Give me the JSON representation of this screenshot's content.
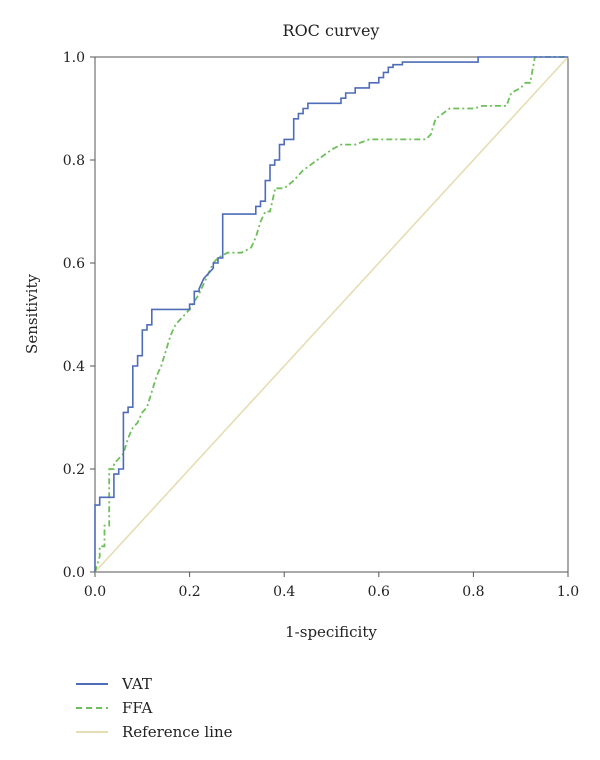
{
  "chart_data": {
    "type": "line",
    "title": "ROC curvey",
    "xlabel": "1-specificity",
    "ylabel": "Sensitivity",
    "xlim": [
      0,
      1
    ],
    "ylim": [
      0,
      1
    ],
    "x_ticks": [
      "0.0",
      "0.2",
      "0.4",
      "0.6",
      "0.8",
      "1.0"
    ],
    "y_ticks": [
      "0.0",
      "0.2",
      "0.4",
      "0.6",
      "0.8",
      "1.0"
    ],
    "grid": false,
    "legend_position": "bottom-left",
    "series": [
      {
        "name": "VAT",
        "color": "#4e6cb8",
        "style": "solid",
        "x": [
          0.0,
          0.0,
          0.01,
          0.01,
          0.04,
          0.04,
          0.05,
          0.05,
          0.06,
          0.06,
          0.07,
          0.07,
          0.08,
          0.08,
          0.09,
          0.09,
          0.1,
          0.1,
          0.11,
          0.11,
          0.12,
          0.12,
          0.14,
          0.14,
          0.2,
          0.2,
          0.21,
          0.21,
          0.22,
          0.22,
          0.23,
          0.25,
          0.25,
          0.26,
          0.26,
          0.27,
          0.27,
          0.34,
          0.34,
          0.35,
          0.35,
          0.36,
          0.36,
          0.37,
          0.37,
          0.38,
          0.38,
          0.39,
          0.39,
          0.4,
          0.4,
          0.42,
          0.42,
          0.43,
          0.43,
          0.44,
          0.44,
          0.45,
          0.45,
          0.47,
          0.47,
          0.52,
          0.52,
          0.53,
          0.53,
          0.55,
          0.55,
          0.58,
          0.58,
          0.6,
          0.6,
          0.61,
          0.61,
          0.62,
          0.62,
          0.63,
          0.63,
          0.65,
          0.65,
          0.81,
          0.81,
          1.0
        ],
        "y": [
          0.0,
          0.13,
          0.13,
          0.145,
          0.145,
          0.19,
          0.19,
          0.2,
          0.2,
          0.31,
          0.31,
          0.32,
          0.32,
          0.4,
          0.4,
          0.42,
          0.42,
          0.47,
          0.47,
          0.48,
          0.48,
          0.51,
          0.51,
          0.51,
          0.51,
          0.52,
          0.52,
          0.545,
          0.545,
          0.55,
          0.57,
          0.59,
          0.6,
          0.6,
          0.61,
          0.61,
          0.695,
          0.695,
          0.71,
          0.71,
          0.72,
          0.72,
          0.76,
          0.76,
          0.79,
          0.79,
          0.8,
          0.8,
          0.83,
          0.83,
          0.84,
          0.84,
          0.88,
          0.88,
          0.89,
          0.89,
          0.9,
          0.9,
          0.91,
          0.91,
          0.91,
          0.91,
          0.92,
          0.92,
          0.93,
          0.93,
          0.94,
          0.94,
          0.95,
          0.95,
          0.96,
          0.96,
          0.97,
          0.97,
          0.98,
          0.98,
          0.985,
          0.985,
          0.99,
          0.99,
          1.0,
          1.0
        ]
      },
      {
        "name": "FFA",
        "color": "#6dbf5a",
        "style": "dashed",
        "x": [
          0.0,
          0.01,
          0.01,
          0.02,
          0.02,
          0.03,
          0.03,
          0.04,
          0.04,
          0.05,
          0.06,
          0.07,
          0.08,
          0.09,
          0.1,
          0.11,
          0.12,
          0.13,
          0.14,
          0.15,
          0.16,
          0.17,
          0.18,
          0.19,
          0.2,
          0.22,
          0.23,
          0.24,
          0.25,
          0.26,
          0.28,
          0.31,
          0.33,
          0.34,
          0.35,
          0.36,
          0.37,
          0.38,
          0.38,
          0.4,
          0.42,
          0.44,
          0.47,
          0.5,
          0.52,
          0.55,
          0.58,
          0.6,
          0.63,
          0.66,
          0.68,
          0.7,
          0.71,
          0.72,
          0.75,
          0.8,
          0.82,
          0.86,
          0.87,
          0.88,
          0.9,
          0.91,
          0.92,
          0.93,
          0.95,
          1.0
        ],
        "y": [
          0.0,
          0.03,
          0.05,
          0.05,
          0.09,
          0.09,
          0.2,
          0.2,
          0.21,
          0.22,
          0.23,
          0.26,
          0.28,
          0.29,
          0.31,
          0.32,
          0.35,
          0.38,
          0.4,
          0.43,
          0.46,
          0.48,
          0.49,
          0.5,
          0.51,
          0.54,
          0.56,
          0.58,
          0.6,
          0.61,
          0.62,
          0.62,
          0.63,
          0.65,
          0.68,
          0.7,
          0.7,
          0.74,
          0.745,
          0.745,
          0.76,
          0.78,
          0.8,
          0.82,
          0.83,
          0.83,
          0.84,
          0.84,
          0.84,
          0.84,
          0.84,
          0.84,
          0.85,
          0.88,
          0.9,
          0.9,
          0.905,
          0.905,
          0.905,
          0.93,
          0.94,
          0.95,
          0.95,
          1.0,
          1.0,
          1.0
        ]
      },
      {
        "name": "Reference line",
        "color": "#e6ddb4",
        "style": "solid",
        "x": [
          0.0,
          1.0
        ],
        "y": [
          0.0,
          1.0
        ]
      }
    ]
  }
}
